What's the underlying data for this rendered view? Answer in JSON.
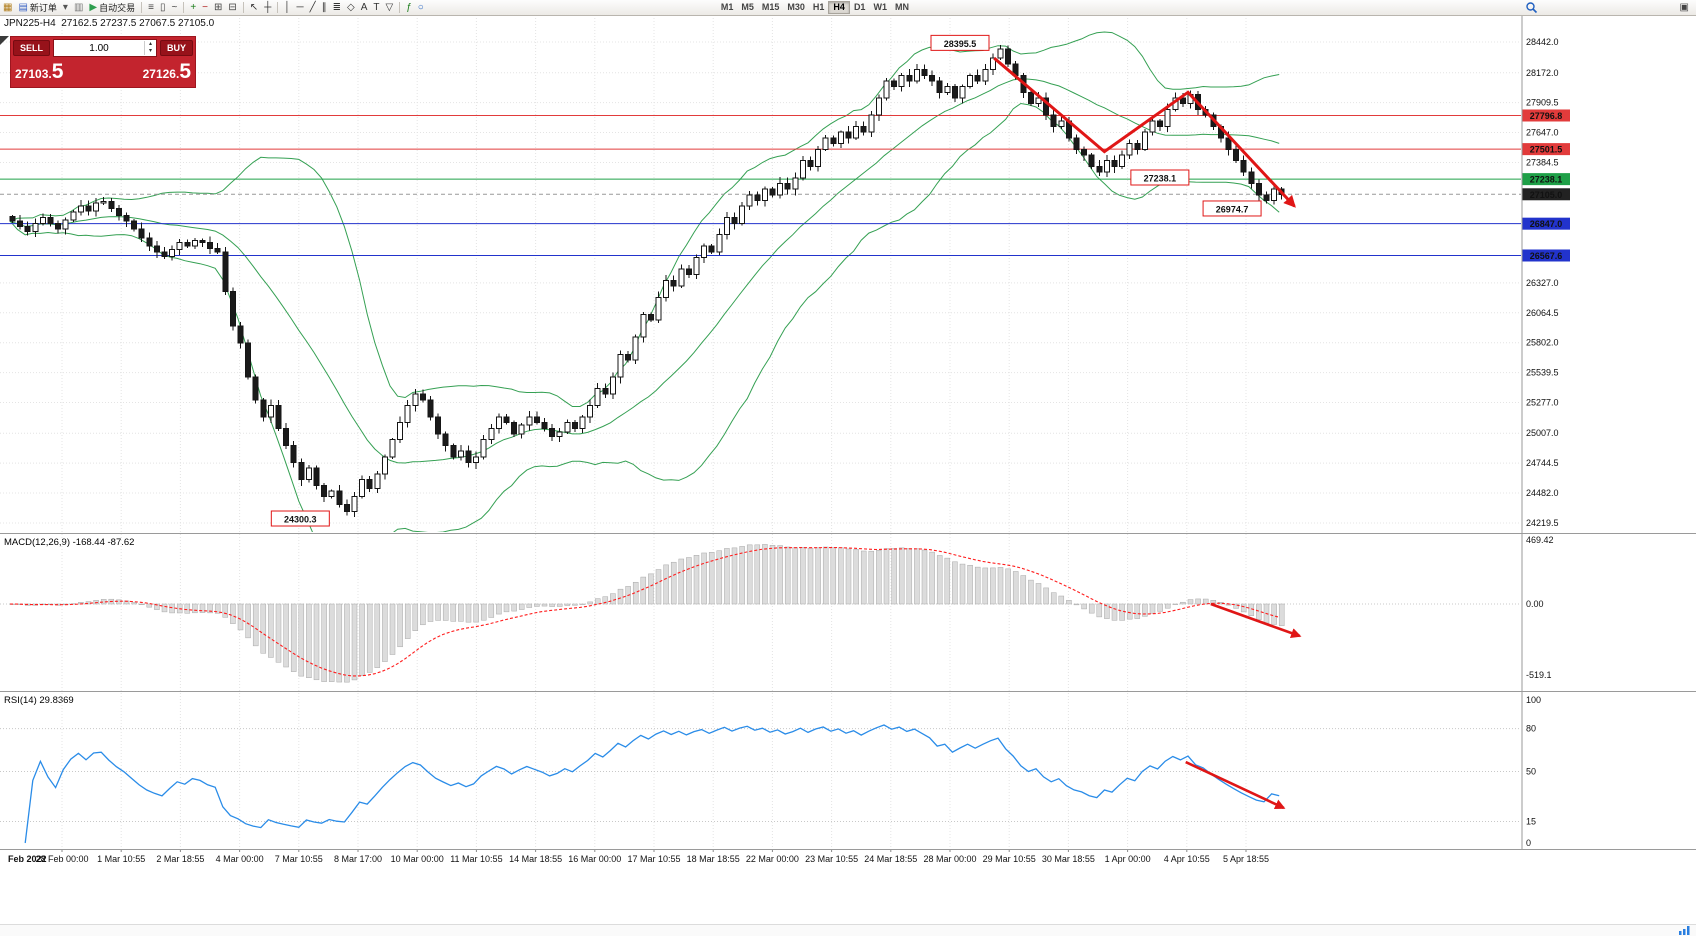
{
  "window": {
    "bg": "#ffffff"
  },
  "toolbar": {
    "items": [
      {
        "name": "terminal-icon",
        "glyph": "▦",
        "color": "#b07c18"
      },
      {
        "name": "new-order-button",
        "glyph": "▤",
        "color": "#3a62c4",
        "label": "新订单"
      },
      {
        "name": "charts-dropdown-icon",
        "glyph": "▾",
        "color": "#555555"
      },
      {
        "name": "profiles-icon",
        "glyph": "▥",
        "color": "#777777"
      },
      {
        "name": "autotrading-button",
        "glyph": "▶",
        "color": "#2e9e4f",
        "label": "自动交易"
      },
      {
        "sep": true
      },
      {
        "name": "bar-style-icon",
        "glyph": "≡",
        "color": "#444444"
      },
      {
        "name": "candle-style-icon",
        "glyph": "▯",
        "color": "#444444"
      },
      {
        "name": "line-style-icon",
        "glyph": "~",
        "color": "#444444"
      },
      {
        "sep": true
      },
      {
        "name": "zoom-in-icon",
        "glyph": "+",
        "color": "#1c7d1c"
      },
      {
        "name": "zoom-out-icon",
        "glyph": "−",
        "color": "#b02020"
      },
      {
        "name": "tile-windows-icon",
        "glyph": "⊞",
        "color": "#444444"
      },
      {
        "name": "auto-scroll-icon",
        "glyph": "⊟",
        "color": "#444444"
      },
      {
        "sep": true
      },
      {
        "name": "cursor-icon",
        "glyph": "↖",
        "color": "#333333"
      },
      {
        "name": "crosshair-icon",
        "glyph": "┼",
        "color": "#333333"
      },
      {
        "sep": true
      },
      {
        "name": "vertical-line-icon",
        "glyph": "│",
        "color": "#333333"
      },
      {
        "name": "horizontal-line-icon",
        "glyph": "─",
        "color": "#333333"
      },
      {
        "name": "trendline-icon",
        "glyph": "╱",
        "color": "#333333"
      },
      {
        "name": "channel-icon",
        "glyph": "∥",
        "color": "#333333"
      },
      {
        "name": "fibonacci-icon",
        "glyph": "≣",
        "color": "#333333"
      },
      {
        "name": "shapes-icon",
        "glyph": "◇",
        "color": "#333333"
      },
      {
        "name": "text-icon",
        "glyph": "A",
        "color": "#333333"
      },
      {
        "name": "label-icon",
        "glyph": "T",
        "color": "#333333"
      },
      {
        "name": "arrows-icon",
        "glyph": "▽",
        "color": "#333333"
      },
      {
        "sep": true
      },
      {
        "name": "indicators-icon",
        "glyph": "ƒ",
        "color": "#1c7d1c"
      },
      {
        "name": "period-icon",
        "glyph": "○",
        "color": "#2060c0"
      }
    ],
    "timeframes": {
      "items": [
        "M1",
        "M5",
        "M15",
        "M30",
        "H1",
        "H4",
        "D1",
        "W1",
        "MN"
      ],
      "active": "H4"
    }
  },
  "trade_panel": {
    "sell_label": "SELL",
    "buy_label": "BUY",
    "volume": "1.00",
    "sell_price_small": "27103.",
    "sell_price_big": "5",
    "buy_price_small": "27126.",
    "buy_price_big": "5",
    "icons": {
      "spinner_up": "▴",
      "spinner_down": "▾"
    },
    "bg_color": "#c3242e"
  },
  "chart_header": {
    "title": "JPN225-H4  27162.5 27237.5 27067.5 27105.0"
  },
  "chart_data": {
    "type": "candlestick",
    "symbol": "JPN225",
    "timeframe": "H4",
    "ohlc_header": {
      "open": "27162.5",
      "high": "27237.5",
      "low": "27067.5",
      "close": "27105.0"
    },
    "closes": [
      26870,
      26820,
      26780,
      26850,
      26900,
      26850,
      26800,
      26880,
      26950,
      27000,
      26960,
      27030,
      27040,
      26980,
      26920,
      26870,
      26800,
      26720,
      26650,
      26600,
      26560,
      26620,
      26680,
      26650,
      26700,
      26680,
      26630,
      26600,
      26250,
      25950,
      25800,
      25500,
      25300,
      25150,
      25250,
      25050,
      24900,
      24750,
      24600,
      24700,
      24550,
      24450,
      24500,
      24380,
      24320,
      24450,
      24600,
      24520,
      24650,
      24800,
      24950,
      25100,
      25250,
      25350,
      25300,
      25150,
      25000,
      24900,
      24800,
      24850,
      24750,
      24800,
      24950,
      25050,
      25150,
      25100,
      25000,
      25080,
      25150,
      25100,
      25050,
      24980,
      25020,
      25100,
      25050,
      25150,
      25250,
      25400,
      25350,
      25500,
      25700,
      25650,
      25850,
      26050,
      26000,
      26200,
      26350,
      26300,
      26450,
      26400,
      26550,
      26650,
      26600,
      26750,
      26900,
      26850,
      27000,
      27100,
      27050,
      27150,
      27100,
      27200,
      27150,
      27250,
      27400,
      27350,
      27500,
      27600,
      27550,
      27650,
      27600,
      27700,
      27650,
      27800,
      27950,
      28100,
      28050,
      28150,
      28100,
      28200,
      28150,
      28100,
      28000,
      28050,
      27950,
      28050,
      28150,
      28100,
      28200,
      28300,
      28380,
      28250,
      28150,
      28000,
      27900,
      27950,
      27800,
      27700,
      27750,
      27600,
      27500,
      27450,
      27350,
      27300,
      27400,
      27350,
      27450,
      27550,
      27500,
      27650,
      27750,
      27700,
      27850,
      27950,
      27900,
      27980,
      27850,
      27800,
      27700,
      27600,
      27500,
      27400,
      27300,
      27200,
      27100,
      27050,
      27150,
      27105
    ],
    "price_axis": {
      "ticks": [
        "28442.0",
        "28172.0",
        "27909.5",
        "27647.0",
        "27384.5",
        "26327.0",
        "26064.5",
        "25802.0",
        "25539.5",
        "25277.0",
        "25007.0",
        "24744.5",
        "24482.0",
        "24219.5"
      ],
      "min": 24219.5,
      "max": 28442.0
    },
    "time_axis": [
      "Feb 2022",
      "28 Feb 00:00",
      "1 Mar 10:55",
      "2 Mar 18:55",
      "4 Mar 00:00",
      "7 Mar 10:55",
      "8 Mar 17:00",
      "10 Mar 00:00",
      "11 Mar 10:55",
      "14 Mar 18:55",
      "16 Mar 00:00",
      "17 Mar 10:55",
      "18 Mar 18:55",
      "22 Mar 00:00",
      "23 Mar 10:55",
      "24 Mar 18:55",
      "28 Mar 00:00",
      "29 Mar 10:55",
      "30 Mar 18:55",
      "1 Apr 00:00",
      "4 Apr 10:55",
      "5 Apr 18:55"
    ],
    "hlines": [
      {
        "price": 27796.8,
        "label": "27796.8",
        "color": "#e23b3b",
        "style": "solid"
      },
      {
        "price": 27501.5,
        "label": "27501.5",
        "color": "#e23b3b",
        "style": "solid"
      },
      {
        "price": 27238.1,
        "label": "27238.1",
        "color": "#1fa048",
        "style": "solid"
      },
      {
        "price": 27105.0,
        "label": "27105.0",
        "color": "#222222",
        "style": "current"
      },
      {
        "price": 26847.0,
        "label": "26847.0",
        "color": "#2233cc",
        "style": "solid"
      },
      {
        "price": 26567.6,
        "label": "26567.6",
        "color": "#2233cc",
        "style": "solid"
      }
    ],
    "annotations": {
      "color": "#e01616",
      "price_labels": [
        {
          "text": "28395.5",
          "i": 125,
          "p": 28430
        },
        {
          "text": "27238.1",
          "i": 151.3,
          "p": 27248
        },
        {
          "text": "26974.7",
          "i": 160.8,
          "p": 26976
        },
        {
          "text": "24300.3",
          "i": 38.2,
          "p": 24254
        }
      ],
      "trend_lines": [
        {
          "points": [
            [
              129.5,
              28300
            ],
            [
              144,
              27480
            ],
            [
              155,
              28000
            ],
            [
              169,
              27000
            ]
          ],
          "arrow_end": true
        }
      ],
      "macd_arrow": {
        "from": [
          158,
          0
        ],
        "to": [
          169.7,
          -235
        ]
      },
      "rsi_arrow": {
        "from": [
          154.7,
          56.6
        ],
        "to": [
          167.6,
          24.5
        ]
      }
    },
    "indicators": {
      "bollinger": {
        "period": 20,
        "deviation": 2,
        "color": "#35a053"
      },
      "macd": {
        "label": "MACD(12,26,9) -168.44 -87.62",
        "axis": [
          "469.42",
          "0.00",
          "-519.1"
        ],
        "hist_fill": "#dcdcdc",
        "hist_stroke": "#a8a8a8",
        "signal_color": "#ff1e1e"
      },
      "rsi": {
        "label": "RSI(14) 29.8369",
        "axis": [
          "100",
          "80",
          "50",
          "15",
          "0"
        ],
        "levels": [
          80,
          50,
          15
        ],
        "color": "#2a8ce8"
      }
    }
  },
  "colors": {
    "grid": "#e4e4e4",
    "candle_up_fill": "#ffffff",
    "candle_down_fill": "#1a1a1a",
    "candle_stroke": "#151515",
    "separator": "#9a9a9a"
  }
}
